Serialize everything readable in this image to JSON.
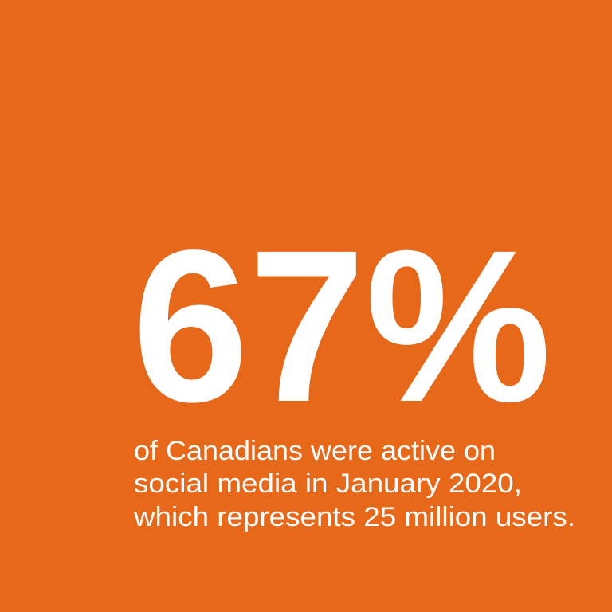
{
  "stat": "67%",
  "caption": [
    "of Canadians were active on",
    "social media in January 2020,",
    "which represents 25 million users."
  ]
}
